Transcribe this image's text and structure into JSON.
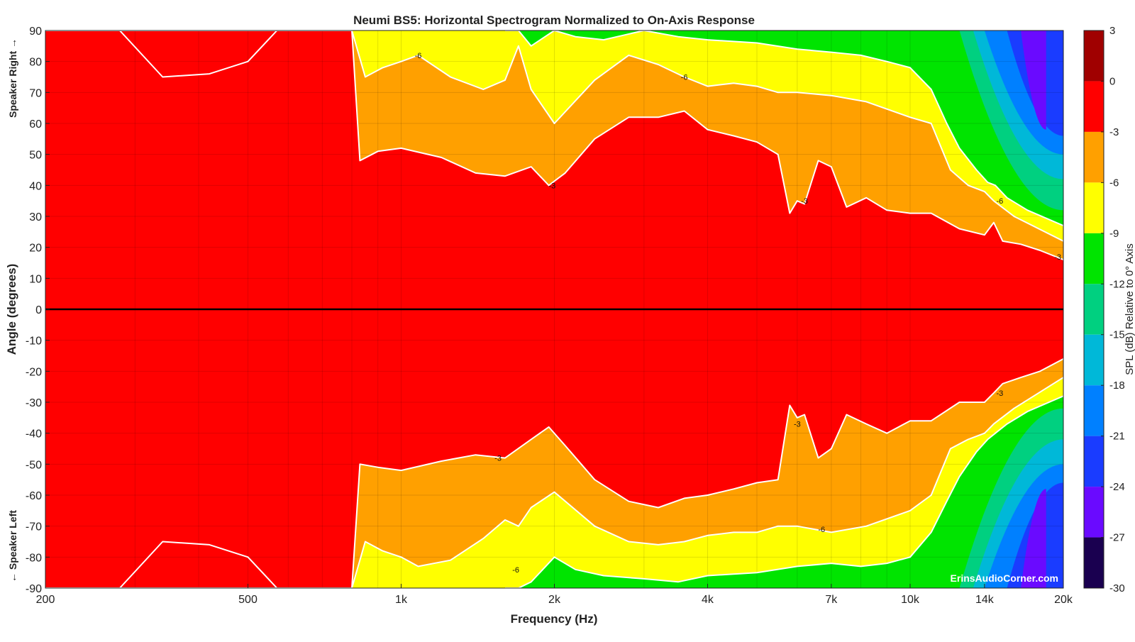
{
  "chart_data": {
    "type": "heatmap",
    "title": "Neumi BS5: Horizontal Spectrogram Normalized to On-Axis Response",
    "xlabel": "Frequency (Hz)",
    "ylabel": "Angle (degrees)",
    "side_label_top": "Speaker Right →",
    "side_label_bottom": "← Speaker Left",
    "x_scale": "log",
    "xlim": [
      200,
      20000
    ],
    "ylim": [
      -90,
      90
    ],
    "x_ticks": [
      {
        "value": 200,
        "label": "200"
      },
      {
        "value": 500,
        "label": "500"
      },
      {
        "value": 1000,
        "label": "1k"
      },
      {
        "value": 2000,
        "label": "2k"
      },
      {
        "value": 4000,
        "label": "4k"
      },
      {
        "value": 7000,
        "label": "7k"
      },
      {
        "value": 10000,
        "label": "10k"
      },
      {
        "value": 14000,
        "label": "14k"
      },
      {
        "value": 20000,
        "label": "20k"
      }
    ],
    "y_ticks": [
      90,
      80,
      70,
      60,
      50,
      40,
      30,
      20,
      10,
      0,
      -10,
      -20,
      -30,
      -40,
      -50,
      -60,
      -70,
      -80,
      -90
    ],
    "colorbar": {
      "label": "SPL (dB) Relative to 0° Axis",
      "range": [
        -30,
        3
      ],
      "ticks": [
        3,
        0,
        -3,
        -6,
        -9,
        -12,
        -15,
        -18,
        -21,
        -24,
        -27,
        -30
      ],
      "bands": [
        {
          "from": 0,
          "to": 3,
          "color": "#a00000"
        },
        {
          "from": -3,
          "to": 0,
          "color": "#ff0000"
        },
        {
          "from": -6,
          "to": -3,
          "color": "#ffa000"
        },
        {
          "from": -9,
          "to": -6,
          "color": "#ffff00"
        },
        {
          "from": -12,
          "to": -9,
          "color": "#00e400"
        },
        {
          "from": -15,
          "to": -12,
          "color": "#00d080"
        },
        {
          "from": -18,
          "to": -15,
          "color": "#00b8d8"
        },
        {
          "from": -21,
          "to": -18,
          "color": "#0080ff"
        },
        {
          "from": -24,
          "to": -21,
          "color": "#1a3cff"
        },
        {
          "from": -27,
          "to": -24,
          "color": "#6a0aff"
        },
        {
          "from": -30,
          "to": -27,
          "color": "#1a0050"
        }
      ]
    },
    "grid": true,
    "watermark": "ErinsAudioCorner.com",
    "contour_labels": [
      {
        "freq": 1080,
        "angle": 82,
        "text": "-6"
      },
      {
        "freq": 3600,
        "angle": 75,
        "text": "-6"
      },
      {
        "freq": 1980,
        "angle": 40,
        "text": "-3"
      },
      {
        "freq": 6200,
        "angle": 35,
        "text": "-3"
      },
      {
        "freq": 15000,
        "angle": 35,
        "text": "-6"
      },
      {
        "freq": 19500,
        "angle": 17,
        "text": "-3"
      },
      {
        "freq": 1550,
        "angle": -48,
        "text": "-3"
      },
      {
        "freq": 6000,
        "angle": -37,
        "text": "-3"
      },
      {
        "freq": 15000,
        "angle": -27,
        "text": "-3"
      },
      {
        "freq": 6700,
        "angle": -71,
        "text": "-6"
      },
      {
        "freq": 1680,
        "angle": -84,
        "text": "-6"
      }
    ],
    "series": [
      {
        "name": "-3 dB contour",
        "points_freq_hz": [
          200,
          800,
          830,
          900,
          1000,
          1200,
          1400,
          1600,
          1800,
          1950,
          2100,
          2400,
          2800,
          3200,
          3600,
          4000,
          4500,
          5000,
          5500,
          5800,
          6000,
          6200,
          6600,
          7000,
          7500,
          8200,
          9000,
          10000,
          11000,
          12500,
          14000,
          14600,
          15200,
          16500,
          18000,
          20000
        ],
        "positive_angle_deg": [
          90,
          90,
          48,
          51,
          52,
          49,
          44,
          43,
          46,
          40,
          44,
          55,
          62,
          62,
          64,
          58,
          56,
          54,
          50,
          31,
          35,
          34,
          48,
          46,
          33,
          36,
          32,
          31,
          31,
          26,
          24,
          28,
          22,
          21,
          19,
          16
        ],
        "negative_angle_deg": [
          -90,
          -90,
          -50,
          -51,
          -52,
          -49,
          -47,
          -48,
          -42,
          -38,
          -44,
          -55,
          -62,
          -64,
          -61,
          -60,
          -58,
          -56,
          -55,
          -31,
          -35,
          -34,
          -48,
          -45,
          -34,
          -37,
          -40,
          -36,
          -36,
          -30,
          -30,
          -27,
          -24,
          -22,
          -20,
          -16
        ]
      },
      {
        "name": "-6 dB contour",
        "points_freq_hz": [
          200,
          280,
          340,
          420,
          500,
          570,
          800,
          850,
          920,
          1000,
          1080,
          1250,
          1450,
          1600,
          1700,
          1800,
          2000,
          2400,
          2800,
          3200,
          3600,
          4000,
          4500,
          5000,
          5500,
          6000,
          7000,
          8200,
          10000,
          11000,
          12000,
          13000,
          14000,
          14600,
          16000,
          20000
        ],
        "positive_angle_deg": [
          90,
          90,
          75,
          76,
          80,
          90,
          90,
          75,
          78,
          80,
          82,
          75,
          71,
          74,
          85,
          71,
          60,
          74,
          82,
          79,
          75,
          72,
          73,
          72,
          70,
          70,
          69,
          67,
          62,
          60,
          45,
          40,
          38,
          35,
          30,
          22
        ],
        "negative_angle_deg": [
          -90,
          -90,
          -75,
          -76,
          -80,
          -90,
          -90,
          -75,
          -78,
          -80,
          -83,
          -81,
          -74,
          -68,
          -70,
          -64,
          -59,
          -70,
          -75,
          -76,
          -75,
          -73,
          -72,
          -72,
          -70,
          -70,
          -72,
          -70,
          -65,
          -60,
          -45,
          -42,
          -40,
          -37,
          -32,
          -22
        ]
      },
      {
        "name": "-9 dB contour",
        "points_freq_hz": [
          1600,
          1650,
          1700,
          1800,
          2000,
          2200,
          2500,
          3000,
          3500,
          4000,
          5000,
          6000,
          7000,
          8000,
          9000,
          10000,
          11000,
          11800,
          12500,
          13500,
          14200,
          14700,
          15500,
          17000,
          20000
        ],
        "positive_angle_deg": [
          90,
          90,
          90,
          85,
          90,
          88,
          87,
          90,
          88,
          87,
          86,
          84,
          83,
          82,
          80,
          78,
          71,
          60,
          52,
          45,
          41,
          40,
          36,
          32,
          27
        ],
        "negative_angle_deg": [
          -90,
          -90,
          -90,
          -88,
          -80,
          -84,
          -86,
          -87,
          -88,
          -86,
          -85,
          -83,
          -82,
          -83,
          -82,
          -80,
          -72,
          -62,
          -54,
          -46,
          -42,
          -40,
          -37,
          -33,
          -28
        ]
      }
    ]
  }
}
